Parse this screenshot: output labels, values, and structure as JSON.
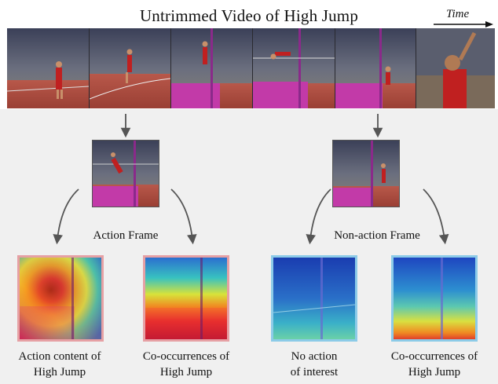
{
  "title": "Untrimmed Video of  High Jump",
  "time_label": "Time",
  "colors": {
    "action_border": "#e6a0a4",
    "non_action_border": "#8ccbe8",
    "panel_background": "#f0f0f0",
    "arrow": "#555555",
    "track": "#c0564a",
    "mat": "#c23aa8"
  },
  "video_strip": {
    "frame_count": 6,
    "scenes": [
      "runway-approach",
      "curve-run",
      "take-off-at-bar",
      "clearing-bar",
      "landing",
      "celebration"
    ]
  },
  "action_frame": {
    "caption": "Action Frame",
    "attention_maps": [
      {
        "caption_lines": [
          "Action content of",
          "High Jump"
        ],
        "border": "pink"
      },
      {
        "caption_lines": [
          "Co-occurrences of",
          "High Jump"
        ],
        "border": "pink"
      }
    ]
  },
  "non_action_frame": {
    "caption": "Non-action Frame",
    "attention_maps": [
      {
        "caption_lines": [
          "No action",
          "of interest"
        ],
        "border": "blue"
      },
      {
        "caption_lines": [
          "Co-occurrences of",
          "High Jump"
        ],
        "border": "blue"
      }
    ]
  }
}
